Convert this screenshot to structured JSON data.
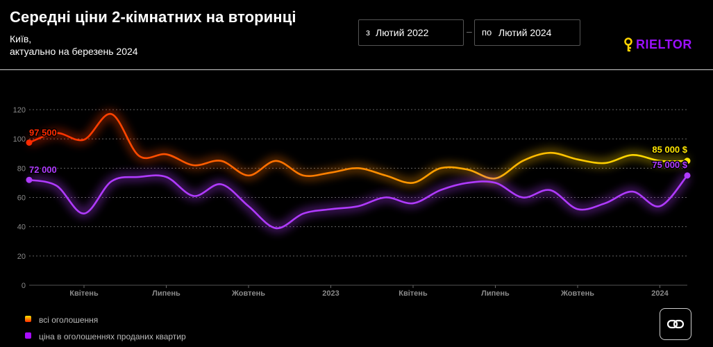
{
  "header": {
    "title": "Середні ціни 2-кімнатних на вторинці",
    "subtitle_line1": "Київ,",
    "subtitle_line2": "актуально на березень 2024"
  },
  "date_range": {
    "from_prefix": "з",
    "from_value": "Лютий 2022",
    "to_prefix": "по",
    "to_value": "Лютий 2024"
  },
  "logo": {
    "text": "RIELTOR",
    "color": "#9b10ff"
  },
  "legend": [
    {
      "label": "всі оголошення",
      "color": "#ff9a00"
    },
    {
      "label": "ціна в оголошеннях проданих квартир",
      "color": "#a80cff"
    }
  ],
  "share_icon": "link-icon",
  "chart_data": {
    "type": "line",
    "x": [
      "2022-02",
      "2022-03",
      "2022-04",
      "2022-05",
      "2022-06",
      "2022-07",
      "2022-08",
      "2022-09",
      "2022-10",
      "2022-11",
      "2022-12",
      "2023-01",
      "2023-02",
      "2023-03",
      "2023-04",
      "2023-05",
      "2023-06",
      "2023-07",
      "2023-08",
      "2023-09",
      "2023-10",
      "2023-11",
      "2023-12",
      "2024-01",
      "2024-02"
    ],
    "x_tick_labels": [
      {
        "x": "2022-04",
        "label": "Квітень"
      },
      {
        "x": "2022-07",
        "label": "Липень"
      },
      {
        "x": "2022-10",
        "label": "Жовтень"
      },
      {
        "x": "2023-01",
        "label": "2023"
      },
      {
        "x": "2023-04",
        "label": "Квітень"
      },
      {
        "x": "2023-07",
        "label": "Липень"
      },
      {
        "x": "2023-10",
        "label": "Жовтень"
      },
      {
        "x": "2024-01",
        "label": "2024"
      }
    ],
    "ylim": [
      0,
      120
    ],
    "yticks": [
      0,
      20,
      40,
      60,
      80,
      100,
      120
    ],
    "grid": true,
    "legend_position": "bottom-left",
    "series": [
      {
        "name": "всі оголошення",
        "colors": [
          "#ff2a00",
          "#ff8a00",
          "#ffe600"
        ],
        "values": [
          97.5,
          104,
          99.5,
          117,
          88.5,
          89.5,
          82,
          85,
          75,
          85,
          75,
          77,
          80,
          75,
          70,
          80,
          79,
          73,
          85,
          90.5,
          86,
          83.5,
          89,
          85,
          85
        ],
        "start_label": "97 500",
        "end_label": "85 000 $"
      },
      {
        "name": "ціна в оголошеннях проданих квартир",
        "colors": [
          "#b03bff"
        ],
        "values": [
          72,
          68,
          49,
          71,
          74,
          74,
          61,
          69,
          54,
          39,
          49,
          52,
          54,
          60,
          56,
          65,
          70,
          70,
          60,
          65,
          52,
          56,
          64,
          54,
          75
        ],
        "start_label": "72 000",
        "end_label": "75 000 $"
      }
    ]
  }
}
